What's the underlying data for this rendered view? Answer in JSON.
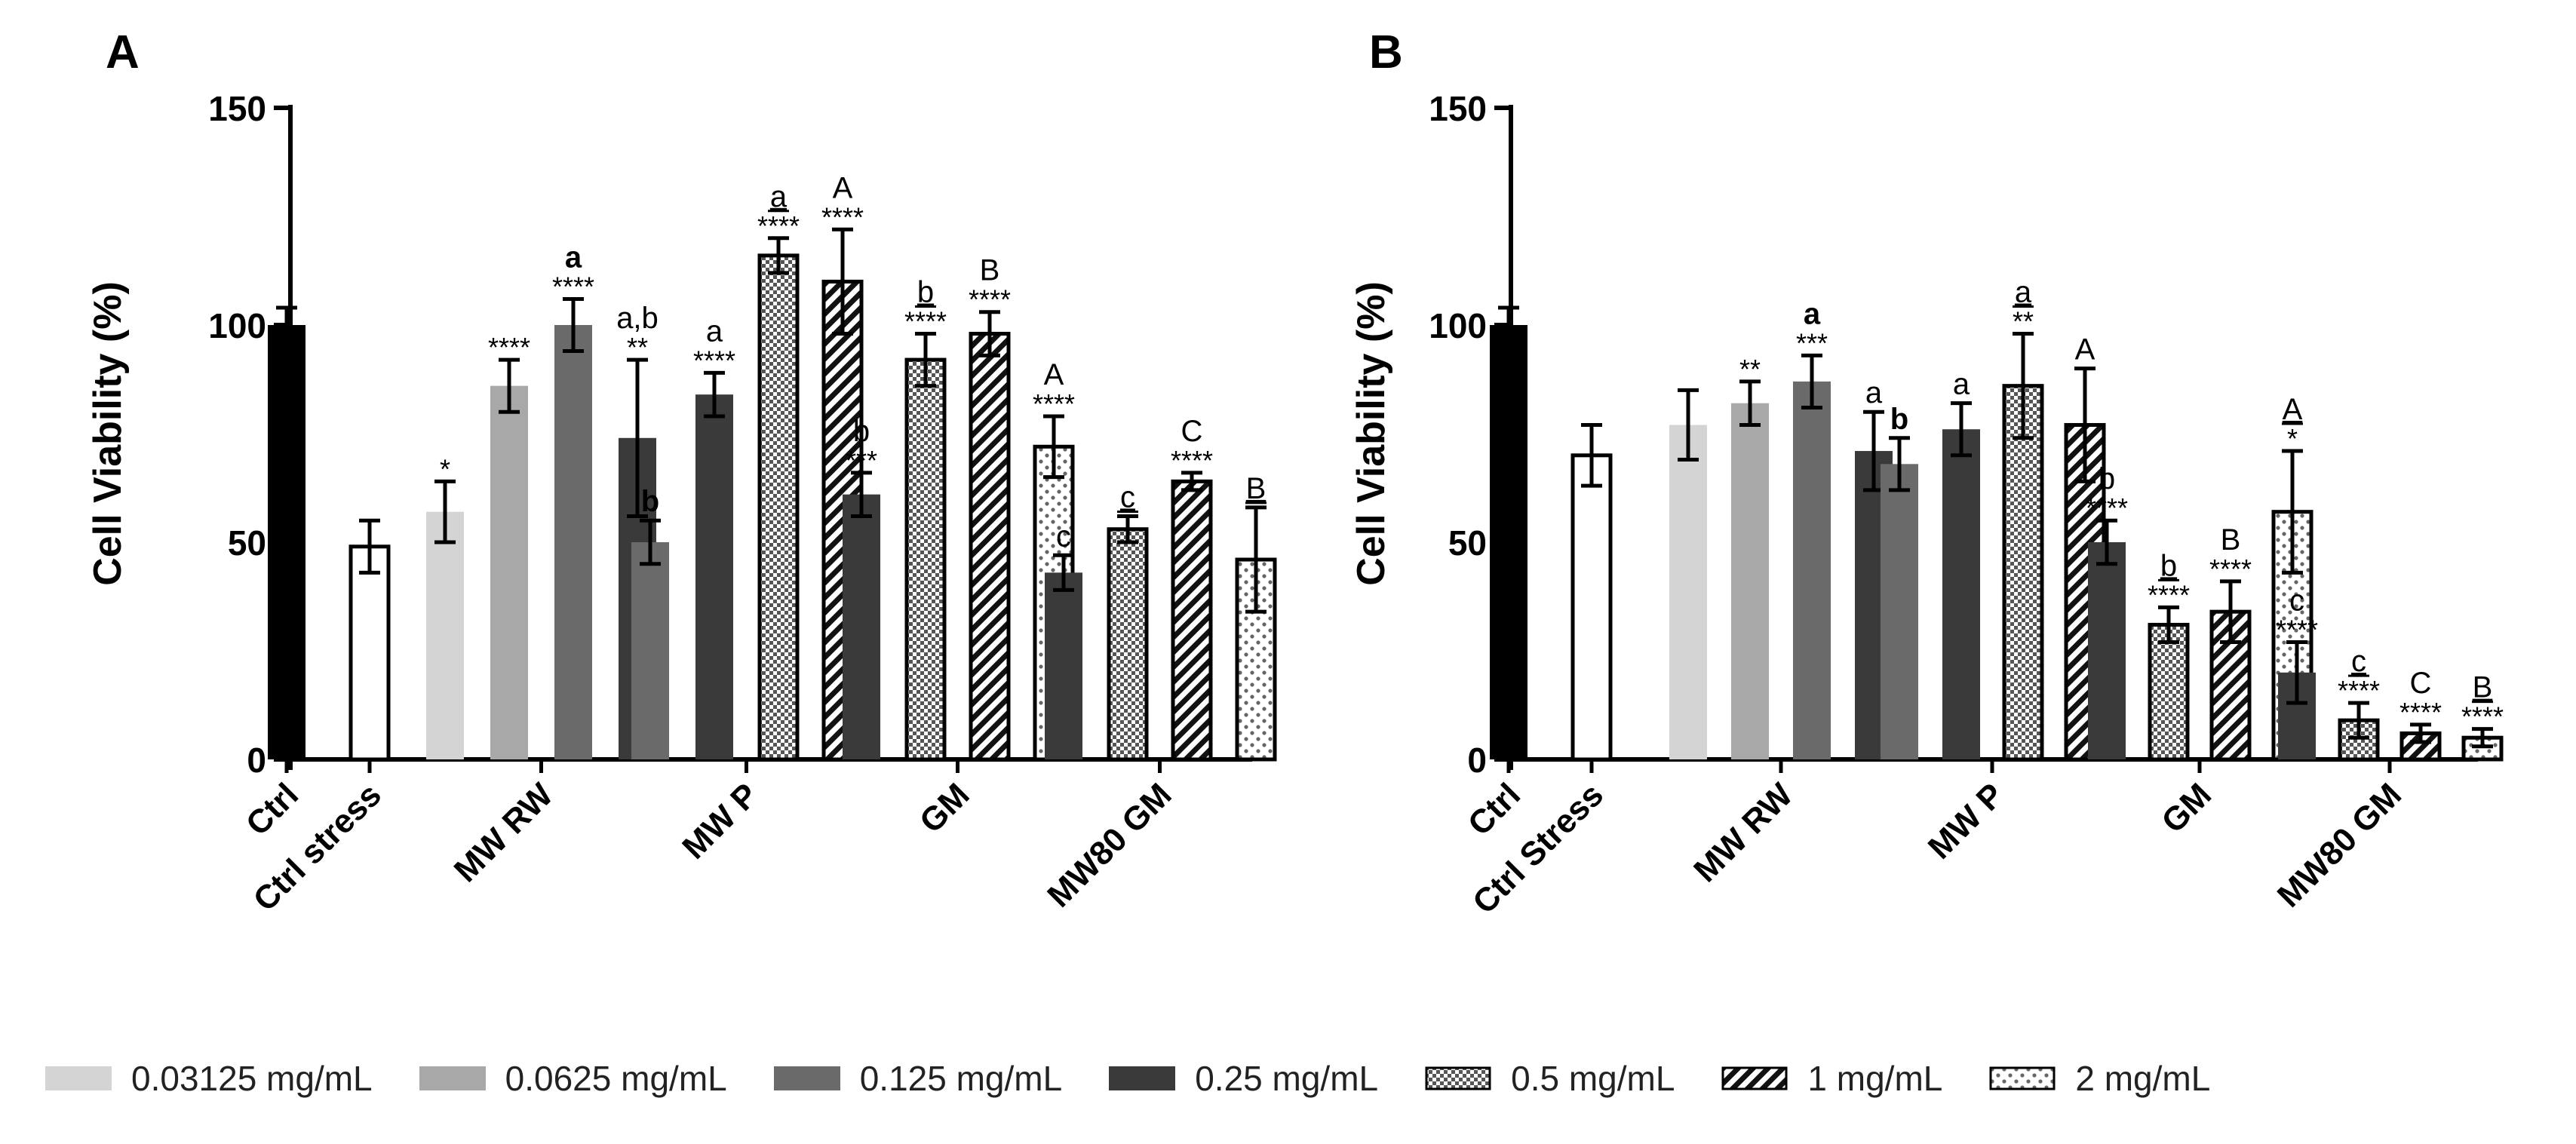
{
  "chart_data": [
    {
      "panel_label": "A",
      "type": "bar",
      "ylabel": "Cell Viability (%)",
      "ylim": [
        0,
        150
      ],
      "yticks": [
        0,
        50,
        100,
        150
      ],
      "groups": [
        {
          "name": "Ctrl",
          "bars": [
            {
              "fill": "ctrl",
              "value": 100,
              "err": 4
            }
          ]
        },
        {
          "name": "Ctrl stress",
          "bars": [
            {
              "fill": "stress",
              "value": 49,
              "err": 6
            }
          ]
        },
        {
          "name": "MW RW",
          "bars": [
            {
              "fill": "c1",
              "value": 57,
              "err": 7,
              "stars": "*"
            },
            {
              "fill": "c2",
              "value": 86,
              "err": 6,
              "stars": "****"
            },
            {
              "fill": "c3",
              "value": 100,
              "err": 6,
              "stars": "****",
              "letter": "a",
              "bold": true
            },
            {
              "fill": "c4",
              "value": 74,
              "err": 18,
              "stars": "**",
              "letter": "a,b"
            }
          ]
        },
        {
          "name": "MW P",
          "bars": [
            {
              "fill": "c3",
              "value": 50,
              "err": 5,
              "letter": "b",
              "bold": true
            },
            {
              "fill": "c4",
              "value": 84,
              "err": 5,
              "stars": "****",
              "letter": "a"
            },
            {
              "fill": "c5",
              "value": 116,
              "err": 4,
              "stars": "****",
              "letter": "a",
              "underline": true
            },
            {
              "fill": "c6",
              "value": 110,
              "err": 12,
              "stars": "****",
              "letter": "A"
            }
          ]
        },
        {
          "name": "GM",
          "bars": [
            {
              "fill": "c4",
              "value": 61,
              "err": 5,
              "stars": "***",
              "letter": "b"
            },
            {
              "fill": "c5",
              "value": 92,
              "err": 6,
              "stars": "****",
              "letter": "b",
              "underline": true
            },
            {
              "fill": "c6",
              "value": 98,
              "err": 5,
              "stars": "****",
              "letter": "B"
            },
            {
              "fill": "c7",
              "value": 72,
              "err": 7,
              "stars": "****",
              "letter": "A"
            }
          ]
        },
        {
          "name": "MW80 GM",
          "bars": [
            {
              "fill": "c4",
              "value": 43,
              "err": 4,
              "letter": "c"
            },
            {
              "fill": "c5",
              "value": 53,
              "err": 3,
              "letter": "c",
              "underline": true
            },
            {
              "fill": "c6",
              "value": 64,
              "err": 2,
              "stars": "****",
              "letter": "C"
            },
            {
              "fill": "c7",
              "value": 46,
              "err": 12,
              "letter": "B",
              "underline": true
            }
          ]
        }
      ]
    },
    {
      "panel_label": "B",
      "type": "bar",
      "ylabel": "Cell Viability (%)",
      "ylim": [
        0,
        150
      ],
      "yticks": [
        0,
        50,
        100,
        150
      ],
      "groups": [
        {
          "name": "Ctrl",
          "bars": [
            {
              "fill": "ctrl",
              "value": 100,
              "err": 4
            }
          ]
        },
        {
          "name": "Ctrl Stress",
          "bars": [
            {
              "fill": "stress",
              "value": 70,
              "err": 7
            }
          ]
        },
        {
          "name": "MW RW",
          "bars": [
            {
              "fill": "c1",
              "value": 77,
              "err": 8
            },
            {
              "fill": "c2",
              "value": 82,
              "err": 5,
              "stars": "**"
            },
            {
              "fill": "c3",
              "value": 87,
              "err": 6,
              "stars": "***",
              "letter": "a",
              "bold": true
            },
            {
              "fill": "c4",
              "value": 71,
              "err": 9,
              "letter": "a"
            }
          ]
        },
        {
          "name": "MW P",
          "bars": [
            {
              "fill": "c3",
              "value": 68,
              "err": 6,
              "letter": "b",
              "bold": true
            },
            {
              "fill": "c4",
              "value": 76,
              "err": 6,
              "letter": "a"
            },
            {
              "fill": "c5",
              "value": 86,
              "err": 12,
              "stars": "**",
              "letter": "a",
              "underline": true
            },
            {
              "fill": "c6",
              "value": 77,
              "err": 13,
              "letter": "A"
            }
          ]
        },
        {
          "name": "GM",
          "bars": [
            {
              "fill": "c4",
              "value": 50,
              "err": 5,
              "stars": "****",
              "letter": "b"
            },
            {
              "fill": "c5",
              "value": 31,
              "err": 4,
              "stars": "****",
              "letter": "b",
              "underline": true
            },
            {
              "fill": "c6",
              "value": 34,
              "err": 7,
              "stars": "****",
              "letter": "B"
            },
            {
              "fill": "c7",
              "value": 57,
              "err": 14,
              "stars": "*",
              "letter": "A",
              "underline": true
            }
          ]
        },
        {
          "name": "MW80 GM",
          "bars": [
            {
              "fill": "c4",
              "value": 20,
              "err": 7,
              "stars": "****",
              "letter": "c"
            },
            {
              "fill": "c5",
              "value": 9,
              "err": 4,
              "stars": "****",
              "letter": "c",
              "underline": true
            },
            {
              "fill": "c6",
              "value": 6,
              "err": 2,
              "stars": "****",
              "letter": "C"
            },
            {
              "fill": "c7",
              "value": 5,
              "err": 2,
              "stars": "****",
              "letter": "B",
              "underline": true
            }
          ]
        }
      ]
    }
  ],
  "legend": [
    {
      "key": "c1",
      "label": "0.03125 mg/mL"
    },
    {
      "key": "c2",
      "label": "0.0625 mg/mL"
    },
    {
      "key": "c3",
      "label": "0.125 mg/mL"
    },
    {
      "key": "c4",
      "label": "0.25 mg/mL"
    },
    {
      "key": "c5",
      "label": "0.5 mg/mL"
    },
    {
      "key": "c6",
      "label": "1 mg/mL"
    },
    {
      "key": "c7",
      "label": "2 mg/mL"
    }
  ],
  "colors": {
    "ctrl": "#000000",
    "c1": "#d4d4d4",
    "c2": "#a8a8a8",
    "c3": "#6a6a6a",
    "c4": "#3a3a3a",
    "axis": "#000000"
  }
}
